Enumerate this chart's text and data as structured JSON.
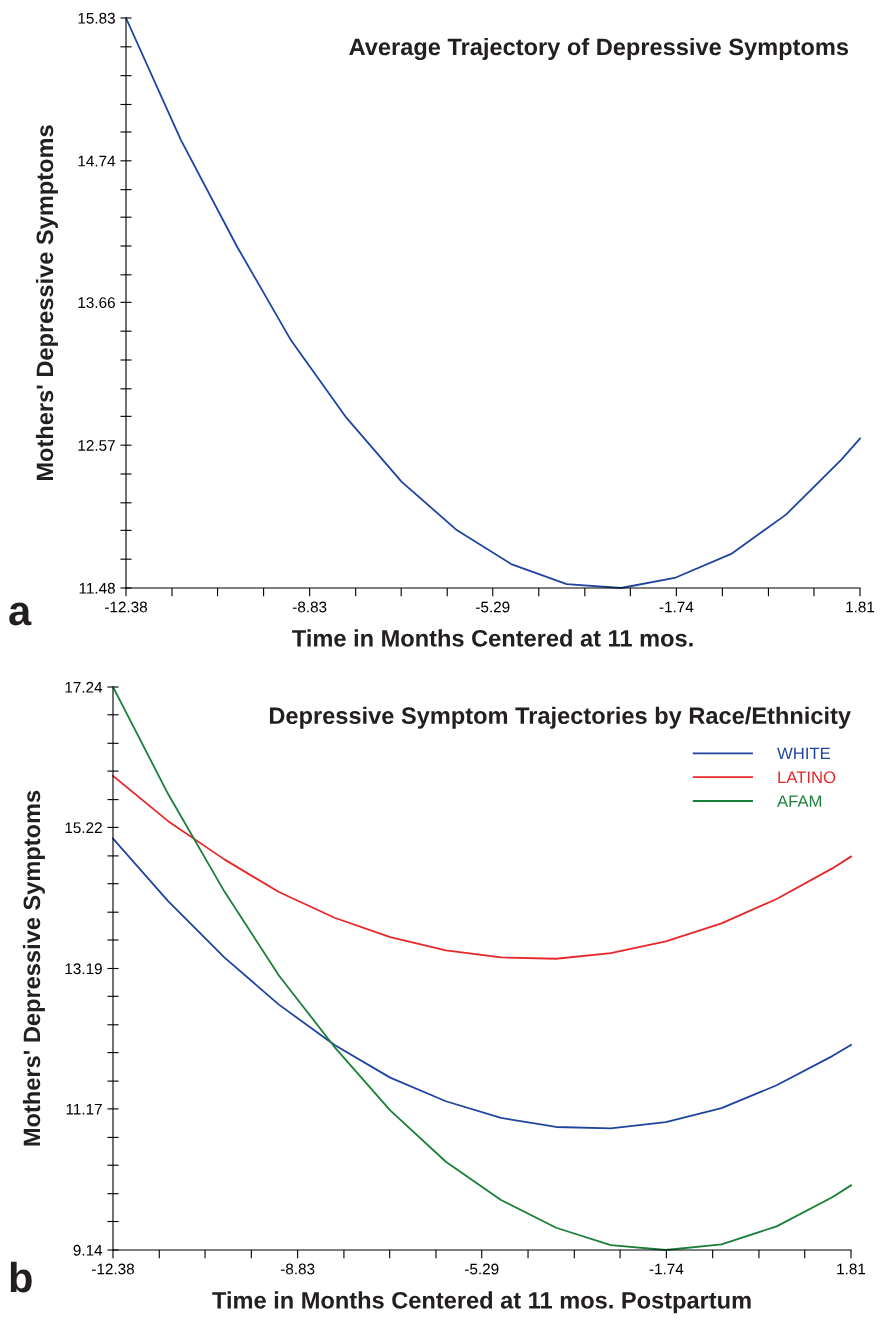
{
  "chart_data": [
    {
      "type": "line",
      "title": "Average Trajectory of Depressive Symptoms",
      "xlabel": "Time in Months Centered at 11 mos.",
      "ylabel": "Mothers' Depressive Symptoms",
      "annotations": [
        "a"
      ],
      "x": [
        -12.38,
        -11.32,
        -10.24,
        -9.19,
        -8.12,
        -7.05,
        -5.98,
        -4.92,
        -3.86,
        -2.81,
        -1.75,
        -0.68,
        0.38,
        1.45,
        1.81
      ],
      "series": [
        {
          "color": "#1f44a0",
          "values": [
            15.83,
            14.9,
            14.09,
            13.37,
            12.78,
            12.29,
            11.92,
            11.66,
            11.51,
            11.48,
            11.56,
            11.74,
            12.04,
            12.46,
            12.62
          ]
        }
      ],
      "xlim": [
        -12.38,
        1.81
      ],
      "ylim": [
        11.48,
        15.83
      ],
      "xticks": [
        -12.38,
        {
          "value": -11.49,
          "label": null
        },
        {
          "value": -10.61,
          "label": null
        },
        {
          "value": -9.72,
          "label": null
        },
        -8.83,
        {
          "value": -7.94,
          "label": null
        },
        {
          "value": -7.06,
          "label": null
        },
        {
          "value": -6.17,
          "label": null
        },
        -5.29,
        {
          "value": -4.4,
          "label": null
        },
        {
          "value": -3.51,
          "label": null
        },
        {
          "value": -2.63,
          "label": null
        },
        -1.74,
        {
          "value": -0.85,
          "label": null
        },
        {
          "value": 0.04,
          "label": null
        },
        {
          "value": 0.92,
          "label": null
        },
        1.81
      ],
      "yticks": [
        11.48,
        {
          "value": 11.7,
          "label": null
        },
        {
          "value": 11.92,
          "label": null
        },
        {
          "value": 12.13,
          "label": null
        },
        {
          "value": 12.35,
          "label": null
        },
        12.57,
        {
          "value": 12.79,
          "label": null
        },
        {
          "value": 13.0,
          "label": null
        },
        {
          "value": 13.22,
          "label": null
        },
        {
          "value": 13.44,
          "label": null
        },
        13.66,
        {
          "value": 13.87,
          "label": null
        },
        {
          "value": 14.09,
          "label": null
        },
        {
          "value": 14.31,
          "label": null
        },
        {
          "value": 14.52,
          "label": null
        },
        14.74,
        {
          "value": 14.96,
          "label": null
        },
        {
          "value": 15.17,
          "label": null
        },
        {
          "value": 15.39,
          "label": null
        },
        {
          "value": 15.61,
          "label": null
        },
        15.83
      ],
      "grid": false,
      "legend": false,
      "marker": "none",
      "line_style": "solid"
    },
    {
      "type": "line",
      "title": "Depressive Symptom Trajectories by Race/Ethnicity",
      "xlabel": "Time in Months Centered at 11 mos. Postpartum",
      "ylabel": "Mothers' Depressive Symptoms",
      "annotations": [
        "b"
      ],
      "x": [
        -12.38,
        -11.32,
        -10.24,
        -9.19,
        -8.12,
        -7.05,
        -5.98,
        -4.92,
        -3.86,
        -2.81,
        -1.75,
        -0.68,
        0.38,
        1.45,
        1.81
      ],
      "series": [
        {
          "name": "WHITE",
          "color": "#1f44a0",
          "values": [
            15.06,
            14.16,
            13.35,
            12.67,
            12.09,
            11.62,
            11.28,
            11.04,
            10.91,
            10.89,
            10.98,
            11.18,
            11.51,
            11.93,
            12.09
          ]
        },
        {
          "name": "LATINO",
          "color": "#e8262a",
          "values": [
            15.96,
            15.31,
            14.76,
            14.29,
            13.92,
            13.64,
            13.45,
            13.35,
            13.33,
            13.41,
            13.58,
            13.84,
            14.19,
            14.63,
            14.8
          ]
        },
        {
          "name": "AFAM",
          "color": "#1a8038",
          "values": [
            17.24,
            15.7,
            14.3,
            13.09,
            12.06,
            11.15,
            10.41,
            9.86,
            9.46,
            9.21,
            9.14,
            9.22,
            9.48,
            9.9,
            10.07
          ]
        }
      ],
      "xlim": [
        -12.38,
        1.81
      ],
      "ylim": [
        9.14,
        17.24
      ],
      "xticks": [
        -12.38,
        {
          "value": -11.49,
          "label": null
        },
        {
          "value": -10.61,
          "label": null
        },
        {
          "value": -9.72,
          "label": null
        },
        -8.83,
        {
          "value": -7.94,
          "label": null
        },
        {
          "value": -7.06,
          "label": null
        },
        {
          "value": -6.17,
          "label": null
        },
        -5.29,
        {
          "value": -4.4,
          "label": null
        },
        {
          "value": -3.51,
          "label": null
        },
        {
          "value": -2.63,
          "label": null
        },
        -1.74,
        {
          "value": -0.85,
          "label": null
        },
        {
          "value": 0.04,
          "label": null
        },
        {
          "value": 0.92,
          "label": null
        },
        1.81
      ],
      "yticks": [
        9.14,
        {
          "value": 9.55,
          "label": null
        },
        {
          "value": 9.95,
          "label": null
        },
        {
          "value": 10.36,
          "label": null
        },
        {
          "value": 10.76,
          "label": null
        },
        11.17,
        {
          "value": 11.57,
          "label": null
        },
        {
          "value": 11.98,
          "label": null
        },
        {
          "value": 12.38,
          "label": null
        },
        {
          "value": 12.79,
          "label": null
        },
        13.19,
        {
          "value": 13.6,
          "label": null
        },
        {
          "value": 14.0,
          "label": null
        },
        {
          "value": 14.41,
          "label": null
        },
        {
          "value": 14.81,
          "label": null
        },
        15.22,
        {
          "value": 15.62,
          "label": null
        },
        {
          "value": 16.03,
          "label": null
        },
        {
          "value": 16.43,
          "label": null
        },
        {
          "value": 16.84,
          "label": null
        },
        17.24
      ],
      "grid": false,
      "legend": "top right",
      "marker": "none",
      "line_style": "solid"
    }
  ]
}
